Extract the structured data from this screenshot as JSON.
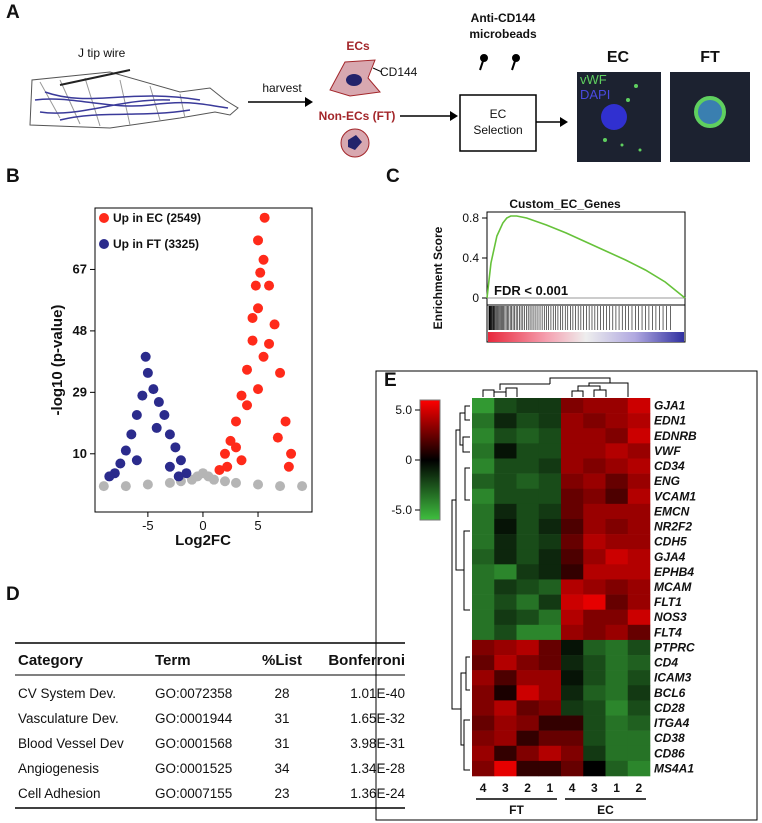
{
  "panels": [
    "A",
    "B",
    "C",
    "D",
    "E"
  ],
  "schematic": {
    "wire_label": "J tip wire",
    "arrow_label": "harvest",
    "ecs": "ECs",
    "marker": "CD144",
    "non_ecs": "Non-ECs (FT)",
    "beads": [
      "Anti-CD144",
      "microbeads"
    ],
    "selection": [
      "EC",
      "Selection"
    ],
    "images": [
      {
        "title": "EC",
        "stains": [
          "vWF",
          "DAPI"
        ]
      },
      {
        "title": "FT"
      }
    ]
  },
  "chart_data": [
    {
      "type": "scatter",
      "xlabel": "Log2FC",
      "ylabel": "-log10 (p-value)",
      "xlim": [
        -9.8,
        9.9
      ],
      "ylim": [
        -8,
        86
      ],
      "xticks": [
        -5,
        0,
        5
      ],
      "yticks": [
        10,
        29,
        48,
        67
      ],
      "series": [
        {
          "color": "#b5b5b5",
          "x": [
            -9,
            -7,
            -5,
            -3,
            -2,
            -1,
            -0.5,
            0,
            0.5,
            1,
            2,
            3,
            5,
            7,
            9
          ],
          "values": [
            0,
            0,
            0.5,
            1,
            1.5,
            2,
            3,
            4,
            3,
            2,
            1.5,
            1,
            0.5,
            0,
            0
          ]
        },
        {
          "name": "Up in EC (2549)",
          "color": "#ff2a1a",
          "x": [
            1.5,
            2,
            2.5,
            3,
            3.5,
            4,
            4.5,
            5,
            5.5,
            6,
            6.5,
            7,
            7.5,
            8,
            4.8,
            5.2,
            5.6,
            5.0,
            4.5,
            3.0,
            2.2,
            6.0,
            5.5,
            5.0,
            4.0,
            3.5,
            6.8,
            7.8
          ],
          "values": [
            5,
            10,
            14,
            20,
            28,
            36,
            45,
            55,
            70,
            62,
            50,
            35,
            20,
            10,
            62,
            66,
            83,
            76,
            52,
            12,
            6,
            44,
            40,
            30,
            25,
            8,
            15,
            6
          ]
        },
        {
          "name": "Up in FT (3325)",
          "color": "#2b2b8c",
          "x": [
            -1.5,
            -2,
            -2.5,
            -3,
            -3.5,
            -4,
            -4.5,
            -5,
            -5.5,
            -6,
            -6.5,
            -7,
            -7.5,
            -8,
            -8.5,
            -5.2,
            -4.2,
            -3.0,
            -6.0,
            -2.2
          ],
          "values": [
            4,
            8,
            12,
            16,
            22,
            26,
            30,
            35,
            28,
            22,
            16,
            11,
            7,
            4,
            3,
            40,
            18,
            6,
            8,
            3
          ]
        }
      ]
    },
    {
      "type": "line",
      "title": "Custom_EC_Genes",
      "ylabel": "Enrichment Score",
      "annotation": "FDR < 0.001",
      "color": "#66c23a",
      "xlim": [
        0,
        100
      ],
      "ylim": [
        -0.07,
        0.88
      ],
      "yticks": [
        0,
        0.4,
        0.8
      ],
      "x": [
        0,
        2,
        5,
        8,
        10,
        12,
        15,
        20,
        30,
        40,
        50,
        60,
        70,
        80,
        90,
        95,
        100
      ],
      "values": [
        0,
        0.35,
        0.62,
        0.75,
        0.8,
        0.82,
        0.82,
        0.8,
        0.73,
        0.65,
        0.56,
        0.47,
        0.38,
        0.28,
        0.16,
        0.08,
        0
      ]
    },
    {
      "type": "heatmap",
      "zlim": [
        -6,
        6
      ],
      "colors": [
        "#3fbf3f",
        "#000000",
        "#ff0000"
      ],
      "zticks": [
        {
          "value": 5,
          "label": "5.0"
        },
        0,
        {
          "value": -5,
          "label": "-5.0"
        }
      ],
      "columns": [
        "4",
        "3",
        "2",
        "1",
        "4",
        "3",
        "1",
        "2"
      ],
      "groups": [
        "FT",
        "EC"
      ],
      "rows": [
        "GJA1",
        "EDN1",
        "EDNRB",
        "VWF",
        "CD34",
        "ENG",
        "VCAM1",
        "EMCN",
        "NR2F2",
        "CDH5",
        "GJA4",
        "EPHB4",
        "MCAM",
        "FLT1",
        "NOS3",
        "FLT4",
        "PTPRC",
        "CD4",
        "ICAM3",
        "BCL6",
        "CD28",
        "ITGA4",
        "CD38",
        "CD86",
        "MS4A1"
      ],
      "values": [
        [
          -4,
          -2,
          -1.5,
          -1.5,
          2.5,
          3,
          3,
          4
        ],
        [
          -3,
          -1,
          -2,
          -1.5,
          3,
          2.5,
          3,
          3.5
        ],
        [
          -3.5,
          -2,
          -2.5,
          -2,
          3,
          3,
          2.5,
          4
        ],
        [
          -3,
          -0.5,
          -2,
          -2,
          3,
          3,
          3.5,
          3
        ],
        [
          -3.5,
          -2,
          -2,
          -1.5,
          3,
          2.5,
          3,
          3.5
        ],
        [
          -2.5,
          -2,
          -2.5,
          -2,
          2.5,
          3,
          2,
          3
        ],
        [
          -3.5,
          -2,
          -2,
          -2,
          2,
          2.5,
          1.5,
          3.5
        ],
        [
          -3,
          -1,
          -2,
          -1.5,
          2,
          3,
          3,
          3
        ],
        [
          -3,
          -0.5,
          -2,
          -1,
          1.5,
          3,
          2.5,
          3
        ],
        [
          -3,
          -1,
          -2,
          -1.5,
          2,
          3.5,
          3,
          3
        ],
        [
          -2.5,
          -1,
          -2,
          -1,
          1.5,
          3,
          4,
          3.5
        ],
        [
          -3,
          -3.5,
          -1.5,
          -1,
          1,
          3.5,
          3.5,
          3.5
        ],
        [
          -3,
          -1.5,
          -2,
          -2.5,
          3.5,
          3,
          2.5,
          3
        ],
        [
          -3,
          -2,
          -3,
          -1.5,
          4,
          4.5,
          2,
          3
        ],
        [
          -3,
          -1.5,
          -2,
          -3,
          3.5,
          2.5,
          2.5,
          4
        ],
        [
          -3,
          -2,
          -3.5,
          -3.5,
          3,
          2.5,
          3,
          2
        ],
        [
          2.5,
          3,
          3.5,
          2,
          -0.5,
          -2.5,
          -3,
          -2
        ],
        [
          2,
          3.5,
          2.5,
          2,
          -1,
          -2,
          -3,
          -2.5
        ],
        [
          3,
          1.5,
          3,
          3,
          -0.5,
          -2,
          -3,
          -2
        ],
        [
          2.5,
          0.5,
          4,
          3,
          -1,
          -2.5,
          -3,
          -1.5
        ],
        [
          2.5,
          3.5,
          2,
          2.5,
          -1.5,
          -2,
          -3.5,
          -2
        ],
        [
          2,
          3,
          2.5,
          1,
          1,
          -2,
          -3,
          -2.5
        ],
        [
          2.5,
          3,
          1,
          2,
          2,
          -2,
          -3,
          -3
        ],
        [
          3,
          1,
          2.5,
          3.5,
          2.5,
          -1.5,
          -3,
          -3
        ],
        [
          2.5,
          4.5,
          1,
          1,
          2,
          0,
          -2.5,
          -3.5
        ]
      ]
    }
  ],
  "table": {
    "columns": [
      "Category",
      "Term",
      "%List",
      "Bonferroni"
    ],
    "rows": [
      [
        "CV System Dev.",
        "GO:0072358",
        28,
        "1.01E-40"
      ],
      [
        "Vasculature Dev.",
        "GO:0001944",
        31,
        "1.65E-32"
      ],
      [
        "Blood Vessel Dev",
        "GO:0001568",
        31,
        "3.98E-31"
      ],
      [
        "Angiogenesis",
        "GO:0001525",
        34,
        "1.34E-28"
      ],
      [
        "Cell Adhesion",
        "GO:0007155",
        23,
        "1.36E-24"
      ]
    ]
  }
}
